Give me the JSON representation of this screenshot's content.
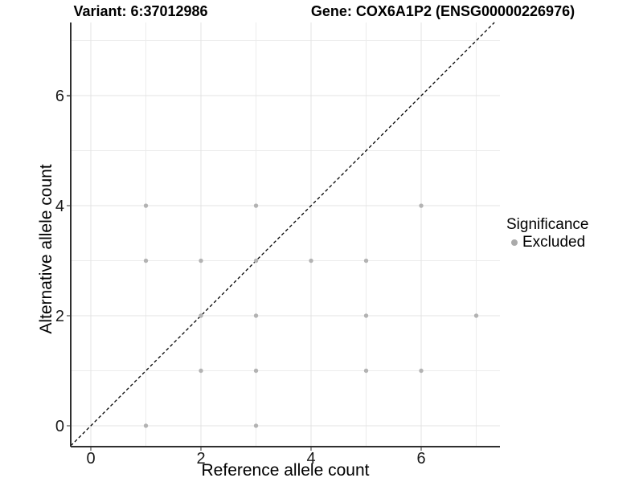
{
  "header": {
    "variant_title": "Variant: 6:37012986",
    "gene_title": "Gene: COX6A1P2 (ENSG00000226976)"
  },
  "chart_data": {
    "type": "scatter",
    "title_left": "Variant: 6:37012986",
    "title_right": "Gene: COX6A1P2 (ENSG00000226976)",
    "xlabel": "Reference allele count",
    "ylabel": "Alternative allele count",
    "xlim": [
      -0.365,
      7.43
    ],
    "ylim": [
      -0.38,
      7.33
    ],
    "x_ticks": [
      0,
      2,
      4,
      6
    ],
    "y_ticks": [
      0,
      2,
      4,
      6
    ],
    "grid_major": [
      0,
      2,
      4,
      6
    ],
    "grid_minor": [
      1,
      3,
      5,
      7
    ],
    "grid_on": true,
    "legend_position": "right",
    "series": [
      {
        "name": "Excluded",
        "color": "#b3b3b3",
        "points": [
          [
            1,
            0
          ],
          [
            3,
            0
          ],
          [
            2,
            1
          ],
          [
            3,
            1
          ],
          [
            5,
            1
          ],
          [
            6,
            1
          ],
          [
            2,
            2
          ],
          [
            3,
            2
          ],
          [
            5,
            2
          ],
          [
            7,
            2
          ],
          [
            1,
            3
          ],
          [
            2,
            3
          ],
          [
            3,
            3
          ],
          [
            4,
            3
          ],
          [
            5,
            3
          ],
          [
            1,
            4
          ],
          [
            3,
            4
          ],
          [
            6,
            4
          ]
        ]
      }
    ],
    "reference_line": {
      "kind": "identity",
      "style": "dashed",
      "color": "#000000"
    },
    "legend": {
      "title": "Significance",
      "entries": [
        {
          "label": "Excluded",
          "color": "#aaaaaa"
        }
      ]
    },
    "colors": {
      "background": "#ffffff",
      "grid_major": "#e3e3e3",
      "grid_minor": "#ececec",
      "axis": "#2f2f2f",
      "tick_text": "#1a1a1a",
      "point": "#b3b3b3"
    }
  }
}
